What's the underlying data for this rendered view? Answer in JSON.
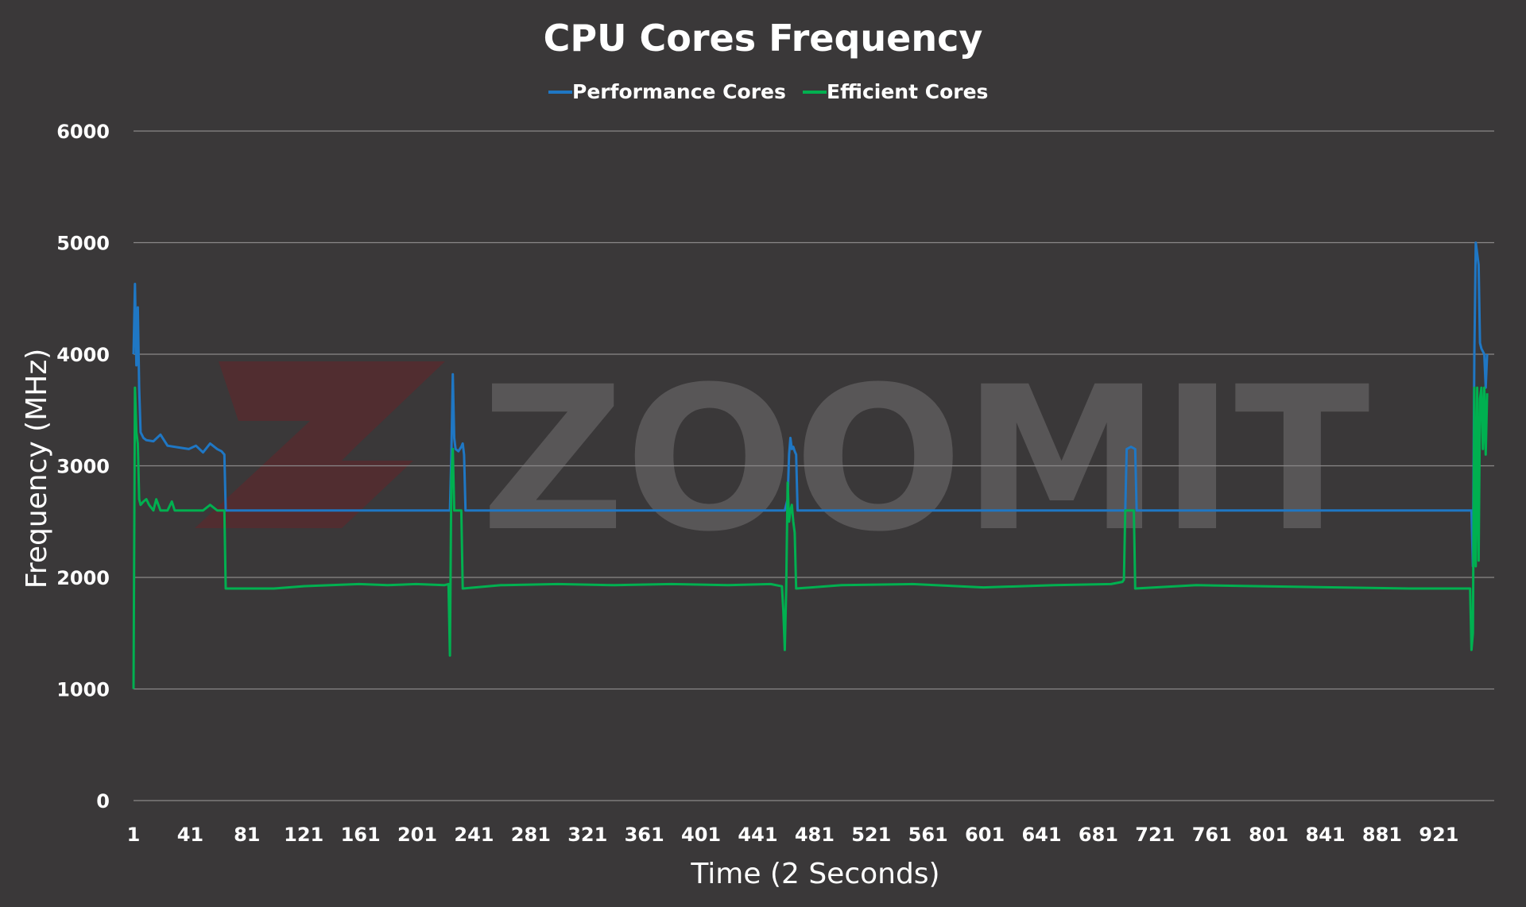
{
  "chart_data": {
    "type": "line",
    "title": "CPU Cores Frequency",
    "xlabel": "Time (2 Seconds)",
    "ylabel": "Frequency (MHz)",
    "ylim": [
      0,
      6000
    ],
    "xlim": [
      1,
      960
    ],
    "y_ticks": [
      "0",
      "1000",
      "2000",
      "3000",
      "4000",
      "5000",
      "6000"
    ],
    "x_ticks": [
      "1",
      "41",
      "81",
      "121",
      "161",
      "201",
      "241",
      "281",
      "321",
      "361",
      "401",
      "441",
      "481",
      "521",
      "561",
      "601",
      "641",
      "681",
      "721",
      "761",
      "801",
      "841",
      "881",
      "921"
    ],
    "legend_position": "top",
    "grid": true,
    "watermark": "ZOOMIT",
    "series": [
      {
        "name": "Performance Cores",
        "color": "#1f77c4",
        "points": [
          [
            1,
            4000
          ],
          [
            2,
            4630
          ],
          [
            3,
            3900
          ],
          [
            4,
            4420
          ],
          [
            5,
            3700
          ],
          [
            6,
            3300
          ],
          [
            8,
            3250
          ],
          [
            10,
            3230
          ],
          [
            15,
            3220
          ],
          [
            20,
            3280
          ],
          [
            25,
            3180
          ],
          [
            30,
            3170
          ],
          [
            35,
            3160
          ],
          [
            40,
            3150
          ],
          [
            45,
            3180
          ],
          [
            50,
            3120
          ],
          [
            55,
            3200
          ],
          [
            60,
            3150
          ],
          [
            63,
            3130
          ],
          [
            65,
            3100
          ],
          [
            66,
            2600
          ],
          [
            100,
            2600
          ],
          [
            200,
            2600
          ],
          [
            224,
            2600
          ],
          [
            225,
            3100
          ],
          [
            226,
            3820
          ],
          [
            227,
            3250
          ],
          [
            228,
            3150
          ],
          [
            230,
            3130
          ],
          [
            232,
            3170
          ],
          [
            233,
            3200
          ],
          [
            234,
            3100
          ],
          [
            235,
            2600
          ],
          [
            300,
            2600
          ],
          [
            400,
            2600
          ],
          [
            460,
            2600
          ],
          [
            462,
            2700
          ],
          [
            463,
            3100
          ],
          [
            464,
            3250
          ],
          [
            465,
            3150
          ],
          [
            466,
            3170
          ],
          [
            467,
            3130
          ],
          [
            468,
            3100
          ],
          [
            469,
            2600
          ],
          [
            550,
            2600
          ],
          [
            650,
            2600
          ],
          [
            700,
            2600
          ],
          [
            701,
            3150
          ],
          [
            704,
            3170
          ],
          [
            707,
            3150
          ],
          [
            708,
            2600
          ],
          [
            800,
            2600
          ],
          [
            900,
            2600
          ],
          [
            944,
            2600
          ],
          [
            945,
            2100
          ],
          [
            946,
            4000
          ],
          [
            947,
            5000
          ],
          [
            948,
            4900
          ],
          [
            949,
            4800
          ],
          [
            950,
            4100
          ],
          [
            951,
            4050
          ],
          [
            953,
            4000
          ],
          [
            954,
            3700
          ],
          [
            955,
            4000
          ]
        ]
      },
      {
        "name": "Efficient Cores",
        "color": "#00b050",
        "points": [
          [
            1,
            1000
          ],
          [
            2,
            3700
          ],
          [
            3,
            3300
          ],
          [
            4,
            3200
          ],
          [
            5,
            2700
          ],
          [
            6,
            2650
          ],
          [
            8,
            2680
          ],
          [
            10,
            2700
          ],
          [
            12,
            2650
          ],
          [
            15,
            2600
          ],
          [
            17,
            2700
          ],
          [
            20,
            2600
          ],
          [
            25,
            2600
          ],
          [
            28,
            2680
          ],
          [
            30,
            2600
          ],
          [
            40,
            2600
          ],
          [
            50,
            2600
          ],
          [
            55,
            2650
          ],
          [
            60,
            2600
          ],
          [
            65,
            2600
          ],
          [
            66,
            1900
          ],
          [
            100,
            1900
          ],
          [
            120,
            1920
          ],
          [
            140,
            1930
          ],
          [
            160,
            1940
          ],
          [
            180,
            1930
          ],
          [
            200,
            1940
          ],
          [
            220,
            1930
          ],
          [
            223,
            1940
          ],
          [
            224,
            1300
          ],
          [
            225,
            2900
          ],
          [
            226,
            3150
          ],
          [
            227,
            2600
          ],
          [
            230,
            2600
          ],
          [
            232,
            2600
          ],
          [
            233,
            1900
          ],
          [
            260,
            1930
          ],
          [
            300,
            1940
          ],
          [
            340,
            1930
          ],
          [
            380,
            1940
          ],
          [
            420,
            1930
          ],
          [
            450,
            1940
          ],
          [
            458,
            1920
          ],
          [
            459,
            1700
          ],
          [
            460,
            1350
          ],
          [
            461,
            1900
          ],
          [
            462,
            2850
          ],
          [
            463,
            2500
          ],
          [
            464,
            2600
          ],
          [
            465,
            2650
          ],
          [
            466,
            2500
          ],
          [
            467,
            2400
          ],
          [
            468,
            1900
          ],
          [
            500,
            1930
          ],
          [
            550,
            1940
          ],
          [
            600,
            1910
          ],
          [
            650,
            1930
          ],
          [
            690,
            1940
          ],
          [
            698,
            1960
          ],
          [
            699,
            1980
          ],
          [
            700,
            2600
          ],
          [
            703,
            2600
          ],
          [
            706,
            2600
          ],
          [
            707,
            1900
          ],
          [
            750,
            1930
          ],
          [
            800,
            1920
          ],
          [
            850,
            1910
          ],
          [
            900,
            1900
          ],
          [
            943,
            1900
          ],
          [
            944,
            1350
          ],
          [
            945,
            1500
          ],
          [
            946,
            3700
          ],
          [
            947,
            2100
          ],
          [
            948,
            3700
          ],
          [
            949,
            2150
          ],
          [
            950,
            3600
          ],
          [
            951,
            3700
          ],
          [
            952,
            3150
          ],
          [
            953,
            3700
          ],
          [
            954,
            3100
          ],
          [
            955,
            3650
          ]
        ]
      }
    ]
  }
}
